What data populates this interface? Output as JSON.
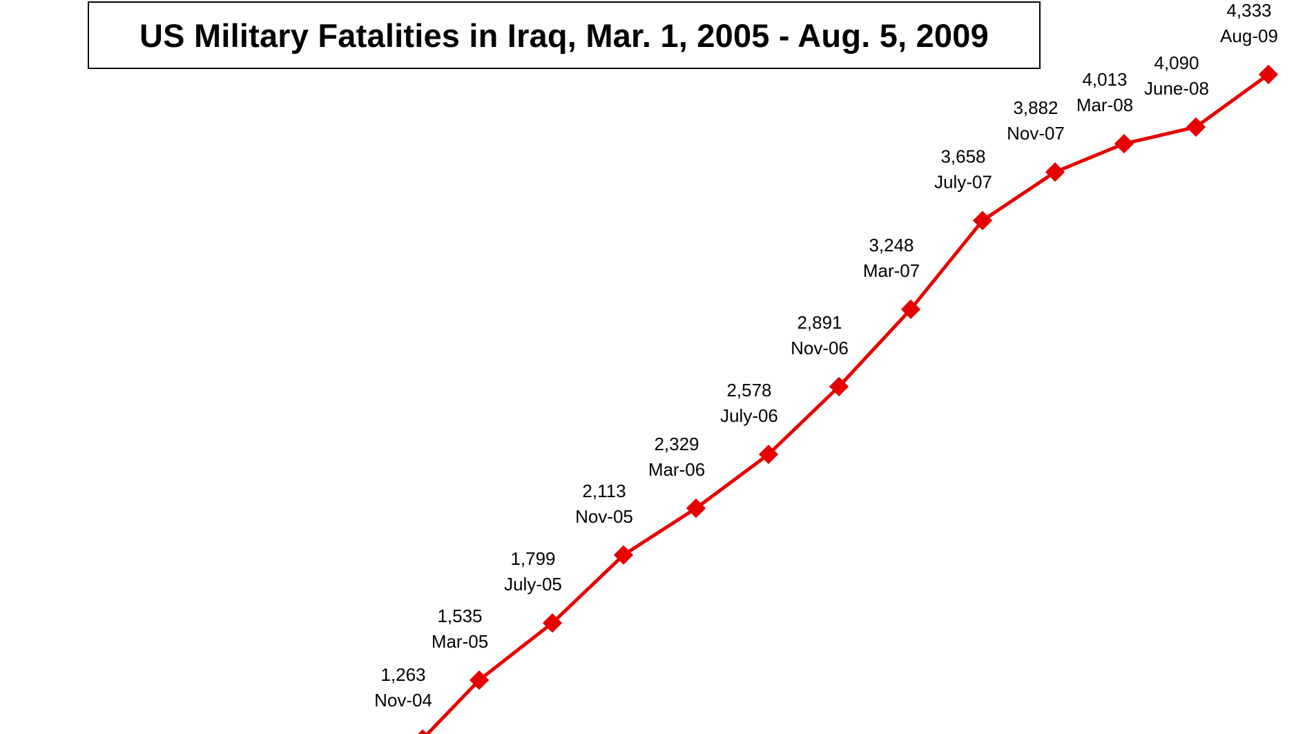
{
  "chart_data": {
    "type": "line",
    "title": "US Military Fatalities in Iraq, Mar. 1, 2005 - Aug. 5, 2009",
    "xlabel": "",
    "ylabel": "",
    "grid": false,
    "legend": "none",
    "line_color": "#e60000",
    "series": [
      {
        "points": [
          {
            "date": "Nov-04",
            "value": 1263,
            "value_label": "1,263"
          },
          {
            "date": "Mar-05",
            "value": 1535,
            "value_label": "1,535"
          },
          {
            "date": "July-05",
            "value": 1799,
            "value_label": "1,799"
          },
          {
            "date": "Nov-05",
            "value": 2113,
            "value_label": "2,113"
          },
          {
            "date": "Mar-06",
            "value": 2329,
            "value_label": "2,329"
          },
          {
            "date": "July-06",
            "value": 2578,
            "value_label": "2,578"
          },
          {
            "date": "Nov-06",
            "value": 2891,
            "value_label": "2,891"
          },
          {
            "date": "Mar-07",
            "value": 3248,
            "value_label": "3,248"
          },
          {
            "date": "July-07",
            "value": 3658,
            "value_label": "3,658"
          },
          {
            "date": "Nov-07",
            "value": 3882,
            "value_label": "3,882"
          },
          {
            "date": "Mar-08",
            "value": 4013,
            "value_label": "4,013"
          },
          {
            "date": "June-08",
            "value": 4090,
            "value_label": "4,090"
          },
          {
            "date": "Aug-09",
            "value": 4333,
            "value_label": "4,333"
          }
        ]
      }
    ]
  }
}
